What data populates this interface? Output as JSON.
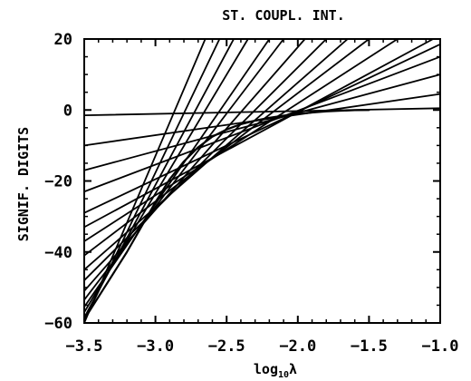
{
  "chart_data": {
    "type": "line",
    "title": "ST. COUPL. INT.",
    "xlabel": "log10λ",
    "xlabel_parts": {
      "prefix": "log",
      "subscript": "10",
      "suffix": "λ"
    },
    "ylabel": "SIGNIF. DIGITS",
    "xlim": [
      -3.5,
      -1.0
    ],
    "ylim": [
      -60,
      20
    ],
    "x_ticks": [
      -3.5,
      -3.0,
      -2.5,
      -2.0,
      -1.5,
      -1.0
    ],
    "x_tick_labels": [
      "−3.5",
      "−3.0",
      "−2.5",
      "−2.0",
      "−1.5",
      "−1.0"
    ],
    "y_ticks": [
      -60,
      -40,
      -20,
      0,
      20
    ],
    "y_tick_labels": [
      "−60",
      "−40",
      "−20",
      "0",
      "20"
    ],
    "grid": false,
    "legend": "none",
    "envelope": {
      "x": [
        -3.5,
        -3.2,
        -3.0,
        -2.9,
        -2.8,
        -2.7,
        -2.6,
        -2.5,
        -2.4,
        -2.3,
        -2.2,
        -2.1,
        -2.0,
        -1.9,
        -1.8,
        -1.7,
        -1.6,
        -1.5
      ],
      "y": [
        -59,
        -40,
        -26,
        -19.5,
        -14.5,
        -10.5,
        -7.5,
        -5.5,
        -4.0,
        -3.0,
        -2.2,
        -1.6,
        -1.1,
        -0.7,
        -0.4,
        -0.2,
        -0.05,
        0.0
      ]
    },
    "series": [
      {
        "x": [
          -3.5,
          -1.0
        ],
        "y": [
          -1.5,
          0.5
        ]
      },
      {
        "x": [
          -3.5,
          -1.0
        ],
        "y": [
          -10.0,
          4.5
        ]
      },
      {
        "x": [
          -3.5,
          -1.0
        ],
        "y": [
          -17.0,
          10.0
        ]
      },
      {
        "x": [
          -3.5,
          -1.0
        ],
        "y": [
          -23.0,
          15.0
        ]
      },
      {
        "x": [
          -3.5,
          -1.0
        ],
        "y": [
          -29.0,
          18.5
        ]
      },
      {
        "x": [
          -3.5,
          -1.05
        ],
        "y": [
          -33.0,
          20.0
        ]
      },
      {
        "x": [
          -3.5,
          -1.3
        ],
        "y": [
          -37.0,
          20.0
        ]
      },
      {
        "x": [
          -3.5,
          -1.5
        ],
        "y": [
          -41.0,
          20.0
        ]
      },
      {
        "x": [
          -3.5,
          -1.65
        ],
        "y": [
          -45.0,
          20.0
        ]
      },
      {
        "x": [
          -3.5,
          -1.8
        ],
        "y": [
          -48.0,
          20.0
        ]
      },
      {
        "x": [
          -3.5,
          -1.95
        ],
        "y": [
          -51.0,
          20.0
        ]
      },
      {
        "x": [
          -3.5,
          -2.1
        ],
        "y": [
          -53.5,
          20.0
        ]
      },
      {
        "x": [
          -3.5,
          -2.2
        ],
        "y": [
          -55.5,
          20.0
        ]
      },
      {
        "x": [
          -3.5,
          -2.35
        ],
        "y": [
          -57.0,
          20.0
        ]
      },
      {
        "x": [
          -3.5,
          -2.45
        ],
        "y": [
          -58.5,
          20.0
        ]
      },
      {
        "x": [
          -3.5,
          -2.55
        ],
        "y": [
          -59.5,
          20.0
        ]
      },
      {
        "x": [
          -3.5,
          -2.65
        ],
        "y": [
          -60.0,
          20.0
        ]
      }
    ]
  }
}
